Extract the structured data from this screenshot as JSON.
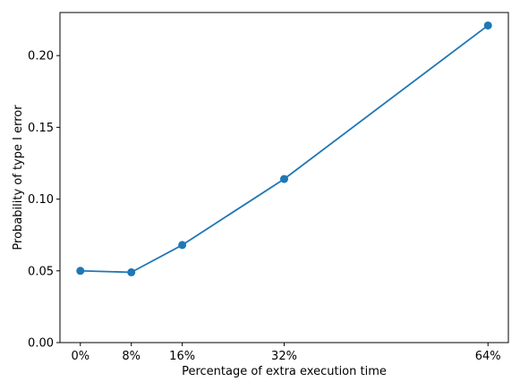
{
  "chart_data": {
    "type": "line",
    "title": "",
    "xlabel": "Percentage of extra execution time",
    "ylabel": "Probability of type I error",
    "x": [
      0,
      8,
      16,
      32,
      64
    ],
    "x_tick_labels": [
      "0%",
      "8%",
      "16%",
      "32%",
      "64%"
    ],
    "y_ticks": [
      0.0,
      0.05,
      0.1,
      0.15,
      0.2
    ],
    "y_tick_labels": [
      "0.00",
      "0.05",
      "0.10",
      "0.15",
      "0.20"
    ],
    "ylim": [
      0.0,
      0.23
    ],
    "xlim": [
      -3.2,
      67.2
    ],
    "grid": false,
    "series": [
      {
        "values": [
          0.05,
          0.049,
          0.068,
          0.114,
          0.221
        ],
        "color": "#1f77b4",
        "marker": "circle"
      }
    ]
  }
}
